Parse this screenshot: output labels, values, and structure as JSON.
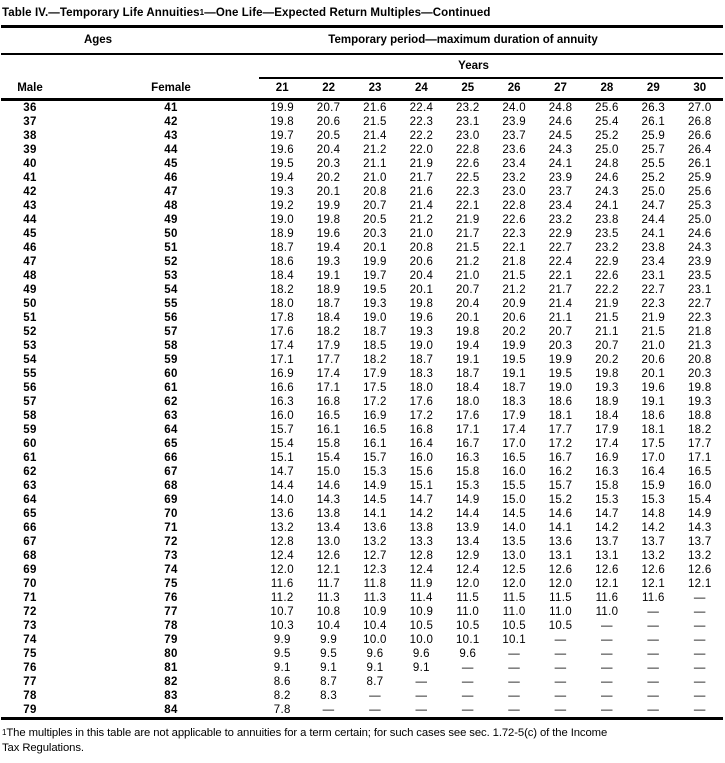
{
  "colors": {
    "text": "#000000",
    "background": "#ffffff",
    "rule": "#000000"
  },
  "title": {
    "pre": "Table IV.—Temporary Life Annuities",
    "sup": "1",
    "post": "—One Life—Expected Return Multiples—Continued"
  },
  "table": {
    "ages_header": "Ages",
    "period_header": "Temporary period—maximum duration of annuity",
    "years_header": "Years",
    "male_header": "Male",
    "female_header": "Female",
    "years": [
      "21",
      "22",
      "23",
      "24",
      "25",
      "26",
      "27",
      "28",
      "29",
      "30"
    ],
    "missing_marker": "—",
    "rows": [
      {
        "male": "36",
        "female": "41",
        "values": [
          "19.9",
          "20.7",
          "21.6",
          "22.4",
          "23.2",
          "24.0",
          "24.8",
          "25.6",
          "26.3",
          "27.0"
        ]
      },
      {
        "male": "37",
        "female": "42",
        "values": [
          "19.8",
          "20.6",
          "21.5",
          "22.3",
          "23.1",
          "23.9",
          "24.6",
          "25.4",
          "26.1",
          "26.8"
        ]
      },
      {
        "male": "38",
        "female": "43",
        "values": [
          "19.7",
          "20.5",
          "21.4",
          "22.2",
          "23.0",
          "23.7",
          "24.5",
          "25.2",
          "25.9",
          "26.6"
        ]
      },
      {
        "male": "39",
        "female": "44",
        "values": [
          "19.6",
          "20.4",
          "21.2",
          "22.0",
          "22.8",
          "23.6",
          "24.3",
          "25.0",
          "25.7",
          "26.4"
        ]
      },
      {
        "male": "40",
        "female": "45",
        "values": [
          "19.5",
          "20.3",
          "21.1",
          "21.9",
          "22.6",
          "23.4",
          "24.1",
          "24.8",
          "25.5",
          "26.1"
        ]
      },
      {
        "male": "41",
        "female": "46",
        "values": [
          "19.4",
          "20.2",
          "21.0",
          "21.7",
          "22.5",
          "23.2",
          "23.9",
          "24.6",
          "25.2",
          "25.9"
        ]
      },
      {
        "male": "42",
        "female": "47",
        "values": [
          "19.3",
          "20.1",
          "20.8",
          "21.6",
          "22.3",
          "23.0",
          "23.7",
          "24.3",
          "25.0",
          "25.6"
        ]
      },
      {
        "male": "43",
        "female": "48",
        "values": [
          "19.2",
          "19.9",
          "20.7",
          "21.4",
          "22.1",
          "22.8",
          "23.4",
          "24.1",
          "24.7",
          "25.3"
        ]
      },
      {
        "male": "44",
        "female": "49",
        "values": [
          "19.0",
          "19.8",
          "20.5",
          "21.2",
          "21.9",
          "22.6",
          "23.2",
          "23.8",
          "24.4",
          "25.0"
        ]
      },
      {
        "male": "45",
        "female": "50",
        "values": [
          "18.9",
          "19.6",
          "20.3",
          "21.0",
          "21.7",
          "22.3",
          "22.9",
          "23.5",
          "24.1",
          "24.6"
        ]
      },
      {
        "male": "46",
        "female": "51",
        "values": [
          "18.7",
          "19.4",
          "20.1",
          "20.8",
          "21.5",
          "22.1",
          "22.7",
          "23.2",
          "23.8",
          "24.3"
        ]
      },
      {
        "male": "47",
        "female": "52",
        "values": [
          "18.6",
          "19.3",
          "19.9",
          "20.6",
          "21.2",
          "21.8",
          "22.4",
          "22.9",
          "23.4",
          "23.9"
        ]
      },
      {
        "male": "48",
        "female": "53",
        "values": [
          "18.4",
          "19.1",
          "19.7",
          "20.4",
          "21.0",
          "21.5",
          "22.1",
          "22.6",
          "23.1",
          "23.5"
        ]
      },
      {
        "male": "49",
        "female": "54",
        "values": [
          "18.2",
          "18.9",
          "19.5",
          "20.1",
          "20.7",
          "21.2",
          "21.7",
          "22.2",
          "22.7",
          "23.1"
        ]
      },
      {
        "male": "50",
        "female": "55",
        "values": [
          "18.0",
          "18.7",
          "19.3",
          "19.8",
          "20.4",
          "20.9",
          "21.4",
          "21.9",
          "22.3",
          "22.7"
        ]
      },
      {
        "male": "51",
        "female": "56",
        "values": [
          "17.8",
          "18.4",
          "19.0",
          "19.6",
          "20.1",
          "20.6",
          "21.1",
          "21.5",
          "21.9",
          "22.3"
        ]
      },
      {
        "male": "52",
        "female": "57",
        "values": [
          "17.6",
          "18.2",
          "18.7",
          "19.3",
          "19.8",
          "20.2",
          "20.7",
          "21.1",
          "21.5",
          "21.8"
        ]
      },
      {
        "male": "53",
        "female": "58",
        "values": [
          "17.4",
          "17.9",
          "18.5",
          "19.0",
          "19.4",
          "19.9",
          "20.3",
          "20.7",
          "21.0",
          "21.3"
        ]
      },
      {
        "male": "54",
        "female": "59",
        "values": [
          "17.1",
          "17.7",
          "18.2",
          "18.7",
          "19.1",
          "19.5",
          "19.9",
          "20.2",
          "20.6",
          "20.8"
        ]
      },
      {
        "male": "55",
        "female": "60",
        "values": [
          "16.9",
          "17.4",
          "17.9",
          "18.3",
          "18.7",
          "19.1",
          "19.5",
          "19.8",
          "20.1",
          "20.3"
        ]
      },
      {
        "male": "56",
        "female": "61",
        "values": [
          "16.6",
          "17.1",
          "17.5",
          "18.0",
          "18.4",
          "18.7",
          "19.0",
          "19.3",
          "19.6",
          "19.8"
        ]
      },
      {
        "male": "57",
        "female": "62",
        "values": [
          "16.3",
          "16.8",
          "17.2",
          "17.6",
          "18.0",
          "18.3",
          "18.6",
          "18.9",
          "19.1",
          "19.3"
        ]
      },
      {
        "male": "58",
        "female": "63",
        "values": [
          "16.0",
          "16.5",
          "16.9",
          "17.2",
          "17.6",
          "17.9",
          "18.1",
          "18.4",
          "18.6",
          "18.8"
        ]
      },
      {
        "male": "59",
        "female": "64",
        "values": [
          "15.7",
          "16.1",
          "16.5",
          "16.8",
          "17.1",
          "17.4",
          "17.7",
          "17.9",
          "18.1",
          "18.2"
        ]
      },
      {
        "male": "60",
        "female": "65",
        "values": [
          "15.4",
          "15.8",
          "16.1",
          "16.4",
          "16.7",
          "17.0",
          "17.2",
          "17.4",
          "17.5",
          "17.7"
        ]
      },
      {
        "male": "61",
        "female": "66",
        "values": [
          "15.1",
          "15.4",
          "15.7",
          "16.0",
          "16.3",
          "16.5",
          "16.7",
          "16.9",
          "17.0",
          "17.1"
        ]
      },
      {
        "male": "62",
        "female": "67",
        "values": [
          "14.7",
          "15.0",
          "15.3",
          "15.6",
          "15.8",
          "16.0",
          "16.2",
          "16.3",
          "16.4",
          "16.5"
        ]
      },
      {
        "male": "63",
        "female": "68",
        "values": [
          "14.4",
          "14.6",
          "14.9",
          "15.1",
          "15.3",
          "15.5",
          "15.7",
          "15.8",
          "15.9",
          "16.0"
        ]
      },
      {
        "male": "64",
        "female": "69",
        "values": [
          "14.0",
          "14.3",
          "14.5",
          "14.7",
          "14.9",
          "15.0",
          "15.2",
          "15.3",
          "15.3",
          "15.4"
        ]
      },
      {
        "male": "65",
        "female": "70",
        "values": [
          "13.6",
          "13.8",
          "14.1",
          "14.2",
          "14.4",
          "14.5",
          "14.6",
          "14.7",
          "14.8",
          "14.9"
        ]
      },
      {
        "male": "66",
        "female": "71",
        "values": [
          "13.2",
          "13.4",
          "13.6",
          "13.8",
          "13.9",
          "14.0",
          "14.1",
          "14.2",
          "14.2",
          "14.3"
        ]
      },
      {
        "male": "67",
        "female": "72",
        "values": [
          "12.8",
          "13.0",
          "13.2",
          "13.3",
          "13.4",
          "13.5",
          "13.6",
          "13.7",
          "13.7",
          "13.7"
        ]
      },
      {
        "male": "68",
        "female": "73",
        "values": [
          "12.4",
          "12.6",
          "12.7",
          "12.8",
          "12.9",
          "13.0",
          "13.1",
          "13.1",
          "13.2",
          "13.2"
        ]
      },
      {
        "male": "69",
        "female": "74",
        "values": [
          "12.0",
          "12.1",
          "12.3",
          "12.4",
          "12.4",
          "12.5",
          "12.6",
          "12.6",
          "12.6",
          "12.6"
        ]
      },
      {
        "male": "70",
        "female": "75",
        "values": [
          "11.6",
          "11.7",
          "11.8",
          "11.9",
          "12.0",
          "12.0",
          "12.0",
          "12.1",
          "12.1",
          "12.1"
        ]
      },
      {
        "male": "71",
        "female": "76",
        "values": [
          "11.2",
          "11.3",
          "11.3",
          "11.4",
          "11.5",
          "11.5",
          "11.5",
          "11.6",
          "11.6",
          "—"
        ]
      },
      {
        "male": "72",
        "female": "77",
        "values": [
          "10.7",
          "10.8",
          "10.9",
          "10.9",
          "11.0",
          "11.0",
          "11.0",
          "11.0",
          "—",
          "—"
        ]
      },
      {
        "male": "73",
        "female": "78",
        "values": [
          "10.3",
          "10.4",
          "10.4",
          "10.5",
          "10.5",
          "10.5",
          "10.5",
          "—",
          "—",
          "—"
        ]
      },
      {
        "male": "74",
        "female": "79",
        "values": [
          "9.9",
          "9.9",
          "10.0",
          "10.0",
          "10.1",
          "10.1",
          "—",
          "—",
          "—",
          "—"
        ]
      },
      {
        "male": "75",
        "female": "80",
        "values": [
          "9.5",
          "9.5",
          "9.6",
          "9.6",
          "9.6",
          "—",
          "—",
          "—",
          "—",
          "—"
        ]
      },
      {
        "male": "76",
        "female": "81",
        "values": [
          "9.1",
          "9.1",
          "9.1",
          "9.1",
          "—",
          "—",
          "—",
          "—",
          "—",
          "—"
        ]
      },
      {
        "male": "77",
        "female": "82",
        "values": [
          "8.6",
          "8.7",
          "8.7",
          "—",
          "—",
          "—",
          "—",
          "—",
          "—",
          "—"
        ]
      },
      {
        "male": "78",
        "female": "83",
        "values": [
          "8.2",
          "8.3",
          "—",
          "—",
          "—",
          "—",
          "—",
          "—",
          "—",
          "—"
        ]
      },
      {
        "male": "79",
        "female": "84",
        "values": [
          "7.8",
          "—",
          "—",
          "—",
          "—",
          "—",
          "—",
          "—",
          "—",
          "—"
        ]
      }
    ]
  },
  "footnote": {
    "sup": "1",
    "line1": "The multiples in this table are not applicable to annuities for a term certain; for such cases see sec. 1.72-5(c) of the Income",
    "line2": "Tax Regulations."
  }
}
